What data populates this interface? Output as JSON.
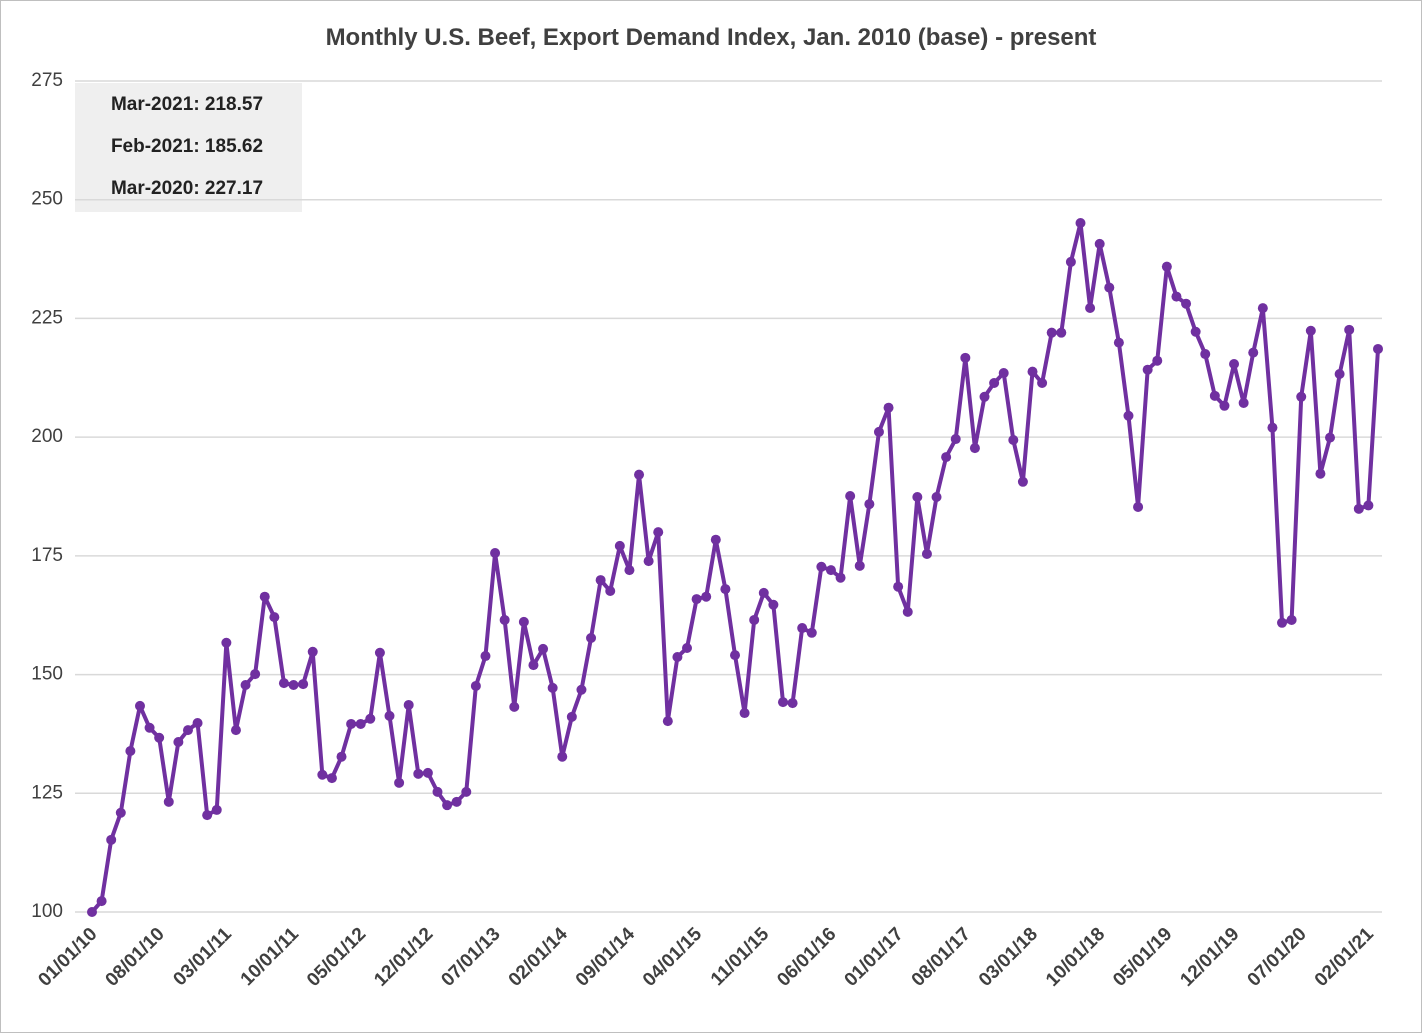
{
  "chart_data": {
    "type": "line",
    "title": "Monthly U.S. Beef, Export Demand Index, Jan. 2010 (base) - present",
    "annotations": [
      "Mar-2021: 218.57",
      "Feb-2021: 185.62",
      "Mar-2020: 227.17"
    ],
    "categories": [
      "01/01/10",
      null,
      null,
      null,
      null,
      null,
      null,
      "08/01/10",
      null,
      null,
      null,
      null,
      null,
      null,
      "03/01/11",
      null,
      null,
      null,
      null,
      null,
      null,
      "10/01/11",
      null,
      null,
      null,
      null,
      null,
      null,
      "05/01/12",
      null,
      null,
      null,
      null,
      null,
      null,
      "12/01/12",
      null,
      null,
      null,
      null,
      null,
      null,
      "07/01/13",
      null,
      null,
      null,
      null,
      null,
      null,
      "02/01/14",
      null,
      null,
      null,
      null,
      null,
      null,
      "09/01/14",
      null,
      null,
      null,
      null,
      null,
      null,
      "04/01/15",
      null,
      null,
      null,
      null,
      null,
      null,
      "11/01/15",
      null,
      null,
      null,
      null,
      null,
      null,
      "06/01/16",
      null,
      null,
      null,
      null,
      null,
      null,
      "01/01/17",
      null,
      null,
      null,
      null,
      null,
      null,
      "08/01/17",
      null,
      null,
      null,
      null,
      null,
      null,
      "03/01/18",
      null,
      null,
      null,
      null,
      null,
      null,
      "10/01/18",
      null,
      null,
      null,
      null,
      null,
      null,
      "05/01/19",
      null,
      null,
      null,
      null,
      null,
      null,
      "12/01/19",
      null,
      null,
      null,
      null,
      null,
      null,
      "07/01/20",
      null,
      null,
      null,
      null,
      null,
      null,
      "02/01/21",
      null
    ],
    "values": [
      100,
      102.3,
      115.2,
      120.9,
      133.9,
      143.4,
      138.8,
      136.7,
      123.2,
      135.8,
      138.3,
      139.8,
      120.4,
      121.5,
      156.7,
      138.3,
      147.8,
      150.1,
      166.4,
      162.1,
      148.2,
      147.8,
      148,
      154.8,
      128.9,
      128.2,
      132.7,
      139.6,
      139.6,
      140.7,
      154.6,
      141.3,
      127.2,
      143.6,
      129.1,
      129.3,
      125.3,
      122.5,
      123.2,
      125.3,
      147.6,
      153.9,
      175.6,
      161.5,
      143.2,
      161.1,
      152,
      155.4,
      147.2,
      132.7,
      141.1,
      146.8,
      157.7,
      169.9,
      167.6,
      177.1,
      172,
      192.1,
      173.9,
      180,
      140.2,
      153.7,
      155.6,
      165.9,
      166.4,
      178.4,
      168,
      154.1,
      141.9,
      161.5,
      167.2,
      164.7,
      144.2,
      144,
      159.8,
      158.8,
      172.7,
      172,
      170.4,
      187.6,
      172.9,
      185.9,
      201.1,
      206.2,
      168.5,
      163.2,
      187.4,
      175.4,
      187.4,
      195.8,
      199.6,
      216.7,
      197.7,
      208.5,
      211.4,
      213.5,
      199.4,
      190.6,
      213.8,
      211.4,
      222,
      222,
      236.9,
      245.1,
      227.2,
      240.7,
      231.5,
      219.9,
      204.5,
      185.3,
      214.2,
      216.1,
      235.9,
      229.6,
      228.1,
      222.2,
      217.5,
      208.7,
      206.6,
      215.4,
      207.2,
      217.8,
      227.17,
      202,
      160.9,
      161.5,
      208.5,
      222.4,
      192.3,
      199.9,
      213.3,
      222.6,
      184.9,
      185.62,
      218.57
    ],
    "color": "#7030a0",
    "ylim": [
      100,
      275
    ],
    "yticks": [
      100,
      125,
      150,
      175,
      200,
      225,
      250,
      275
    ],
    "grid": true
  }
}
